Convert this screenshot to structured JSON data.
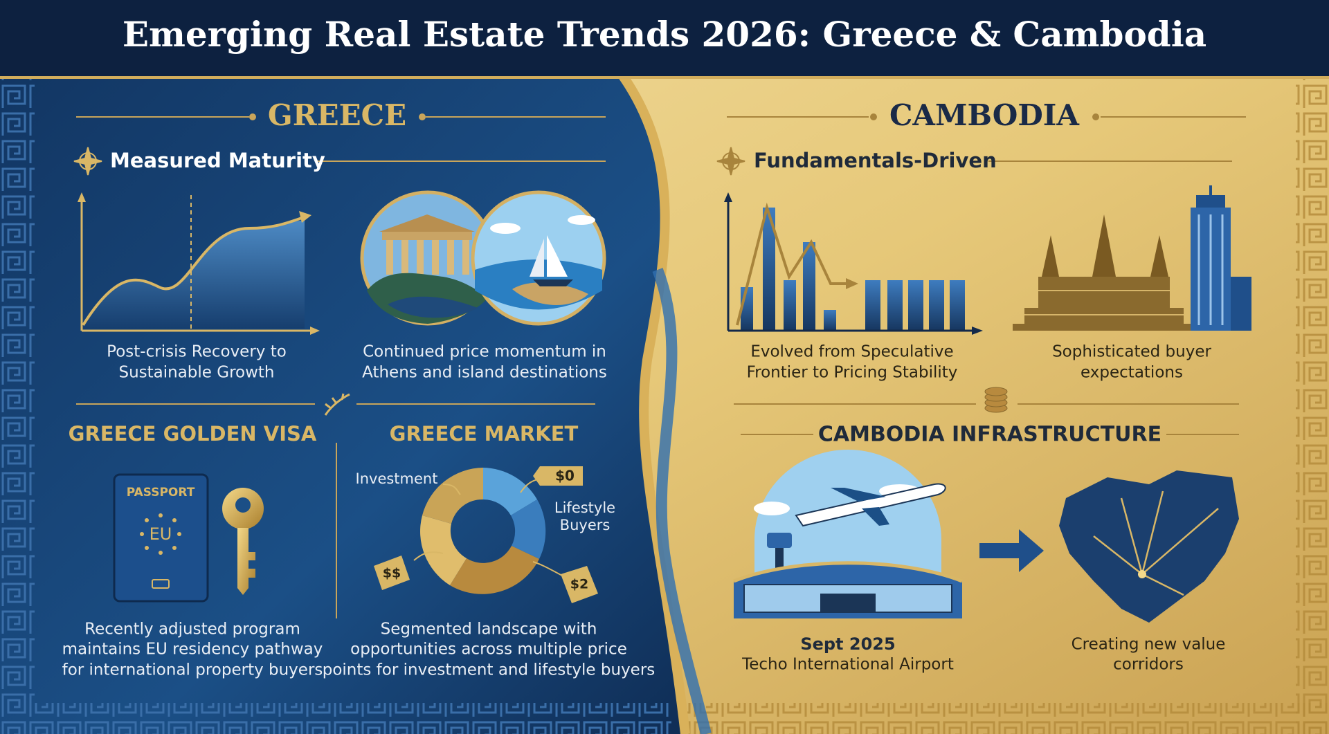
{
  "header": {
    "title": "Emerging Real Estate Trends 2026: Greece & Cambodia"
  },
  "greece": {
    "title": "GREECE",
    "section": "Measured Maturity",
    "items": [
      {
        "caption": [
          "Post-crisis Recovery to",
          "Sustainable Growth"
        ]
      },
      {
        "caption": [
          "Continued price momentum in",
          "Athens and island destinations"
        ]
      }
    ],
    "golden_visa": {
      "title": "GREECE GOLDEN VISA",
      "passport": "PASSPORT",
      "badge": "EU",
      "caption": [
        "Recently adjusted program",
        "maintains EU residency pathway",
        "for international property buyers"
      ]
    },
    "market": {
      "title": "GREECE MARKET",
      "investment": "Investment",
      "lifestyle": [
        "Lifestyle",
        "Buyers"
      ],
      "tags": [
        "$0",
        "$$",
        "$2"
      ],
      "caption": [
        "Segmented landscape with",
        "opportunities across multiple price",
        "points for investment and lifestyle buyers"
      ]
    }
  },
  "cambodia": {
    "title": "CAMBODIA",
    "section": "Fundamentals-Driven",
    "items": [
      {
        "caption": [
          "Evolved from Speculative",
          "Frontier to Pricing Stability"
        ]
      },
      {
        "caption": [
          "Sophisticated buyer",
          "expectations"
        ]
      }
    ],
    "infrastructure": {
      "title": "CAMBODIA INFRASTRUCTURE",
      "date": "Sept 2025",
      "airport": "Techo International Airport",
      "caption": [
        "Creating new value",
        "corridors"
      ]
    }
  }
}
